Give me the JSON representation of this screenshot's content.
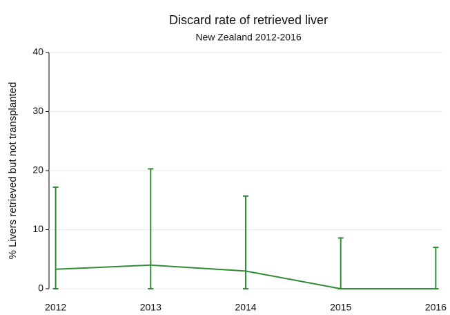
{
  "chart_data": {
    "type": "line",
    "title": "Discard rate of retrieved liver",
    "subtitle": "New Zealand 2012-2016",
    "y_label": "% Livers retrieved but not transplanted",
    "x": [
      2012,
      2013,
      2014,
      2015,
      2016
    ],
    "series": [
      {
        "color": "#2e8b34",
        "values": [
          3.3,
          4.0,
          3.0,
          0,
          0
        ],
        "ci_low": [
          0,
          0,
          0,
          0,
          0
        ],
        "ci_high": [
          17.2,
          20.3,
          15.7,
          8.6,
          7.0
        ]
      }
    ],
    "xlim": [
      2011.93,
      2016.07
    ],
    "xticks": [
      2012,
      2013,
      2014,
      2015,
      2016
    ],
    "ylim": [
      0,
      40
    ],
    "yticks": [
      0,
      10,
      20,
      30,
      40
    ],
    "grid": true
  }
}
